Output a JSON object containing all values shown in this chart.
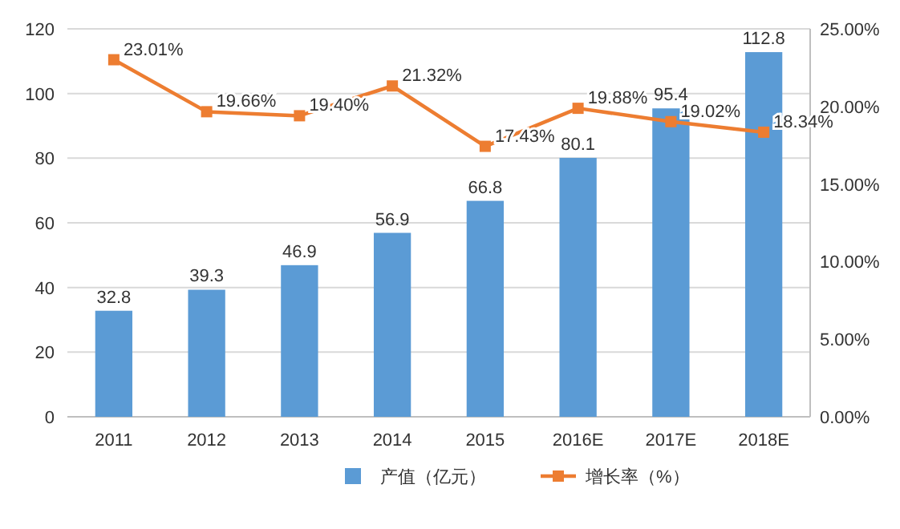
{
  "chart_data": {
    "type": "bar",
    "categories": [
      "2011",
      "2012",
      "2013",
      "2014",
      "2015",
      "2016E",
      "2017E",
      "2018E"
    ],
    "series": [
      {
        "name": "产值（亿元）",
        "color": "#5b9bd5",
        "values": [
          32.8,
          39.3,
          46.9,
          56.9,
          66.8,
          80.1,
          95.4,
          112.8
        ],
        "value_labels": [
          "32.8",
          "39.3",
          "46.9",
          "56.9",
          "66.8",
          "80.1",
          "95.4",
          "112.8"
        ]
      },
      {
        "name": "增长率（%）",
        "type": "line",
        "axis": "y2",
        "marker": "square",
        "color": "#ed7d31",
        "values": [
          23.01,
          19.66,
          19.4,
          21.32,
          17.43,
          19.88,
          19.02,
          18.34
        ],
        "value_labels": [
          "23.01%",
          "19.66%",
          "19.40%",
          "21.32%",
          "17.43%",
          "19.88%",
          "19.02%",
          "18.34%"
        ]
      }
    ],
    "ylim": [
      0,
      120
    ],
    "yticks": [
      0,
      20,
      40,
      60,
      80,
      100,
      120
    ],
    "y2lim": [
      0,
      25
    ],
    "y2ticks": [
      {
        "value": 0,
        "label": "0.00%"
      },
      {
        "value": 5,
        "label": "5.00%"
      },
      {
        "value": 10,
        "label": "10.00%"
      },
      {
        "value": 15,
        "label": "15.00%"
      },
      {
        "value": 20,
        "label": "20.00%"
      },
      {
        "value": 25,
        "label": "25.00%"
      }
    ],
    "grid": "y",
    "legend": "bottom"
  }
}
